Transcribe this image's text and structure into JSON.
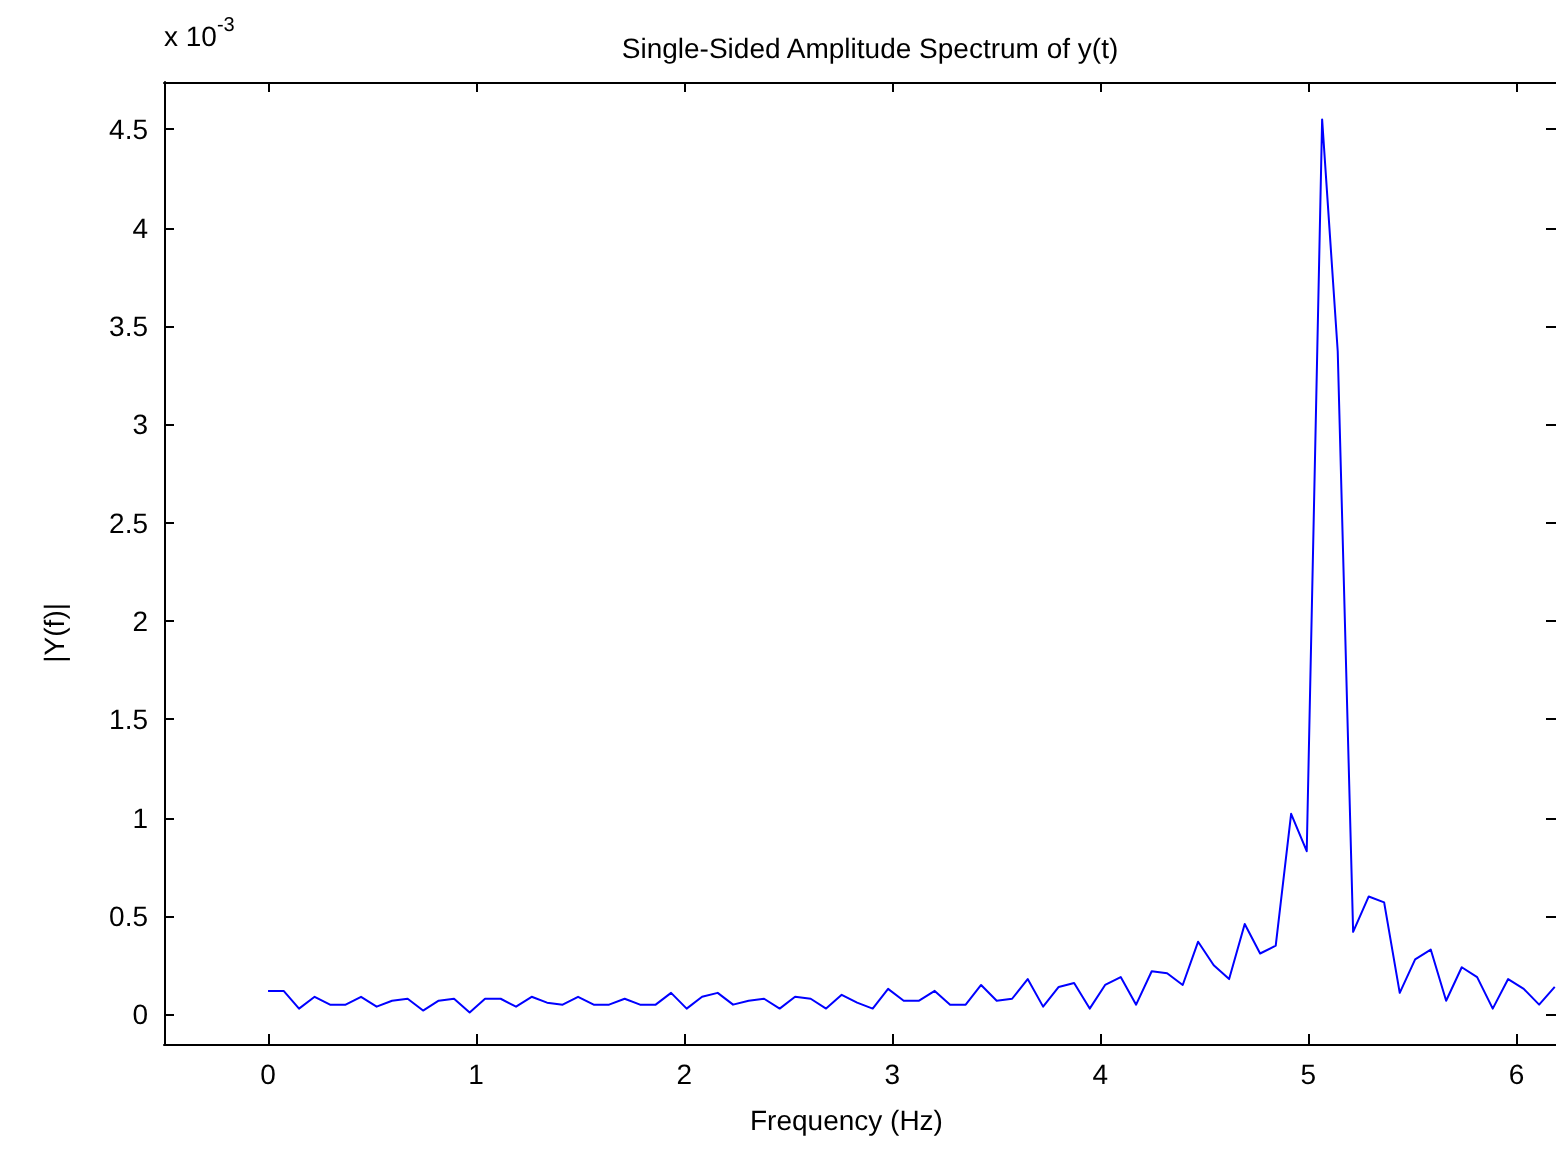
{
  "chart_data": {
    "type": "line",
    "title": "Single-Sided Amplitude Spectrum of y(t)",
    "xlabel": "Frequency (Hz)",
    "ylabel": "|Y(f)|",
    "annotations": [
      "x 10$^{-3}$"
    ],
    "x": [
      0,
      0.075,
      0.149,
      0.224,
      0.298,
      0.373,
      0.447,
      0.522,
      0.596,
      0.671,
      0.745,
      0.82,
      0.894,
      0.969,
      1.043,
      1.118,
      1.192,
      1.267,
      1.341,
      1.416,
      1.49,
      1.565,
      1.639,
      1.714,
      1.788,
      1.863,
      1.937,
      2.012,
      2.086,
      2.161,
      2.235,
      2.31,
      2.384,
      2.459,
      2.533,
      2.608,
      2.682,
      2.757,
      2.831,
      2.906,
      2.98,
      3.055,
      3.129,
      3.204,
      3.278,
      3.353,
      3.427,
      3.502,
      3.576,
      3.651,
      3.725,
      3.8,
      3.874,
      3.949,
      4.023,
      4.098,
      4.172,
      4.247,
      4.321,
      4.396,
      4.47,
      4.545,
      4.619,
      4.694,
      4.768,
      4.843,
      4.917,
      4.992,
      5.066,
      5.141,
      5.215,
      5.29,
      5.364,
      5.439,
      5.513,
      5.588,
      5.662,
      5.737,
      5.811,
      5.886,
      5.96,
      6.035,
      6.109,
      6.184
    ],
    "series": [
      {
        "color": "#0000ff",
        "values": [
          0.12,
          0.12,
          0.03,
          0.09,
          0.05,
          0.05,
          0.09,
          0.04,
          0.07,
          0.08,
          0.02,
          0.07,
          0.08,
          0.01,
          0.08,
          0.08,
          0.04,
          0.09,
          0.06,
          0.05,
          0.09,
          0.05,
          0.05,
          0.08,
          0.05,
          0.05,
          0.11,
          0.03,
          0.09,
          0.11,
          0.05,
          0.07,
          0.08,
          0.03,
          0.09,
          0.08,
          0.03,
          0.1,
          0.06,
          0.03,
          0.13,
          0.07,
          0.07,
          0.12,
          0.05,
          0.05,
          0.15,
          0.07,
          0.08,
          0.18,
          0.04,
          0.14,
          0.16,
          0.03,
          0.15,
          0.19,
          0.05,
          0.22,
          0.21,
          0.15,
          0.37,
          0.25,
          0.18,
          0.46,
          0.31,
          0.35,
          1.02,
          0.83,
          4.55,
          3.37,
          0.42,
          0.6,
          0.57,
          0.11,
          0.28,
          0.33,
          0.07,
          0.24,
          0.19,
          0.03,
          0.18,
          0.13,
          0.05,
          0.14
        ]
      }
    ],
    "xlim": [
      -0.5,
      6.19
    ],
    "ylim": [
      -0.15,
      4.74
    ],
    "xticks": [
      0,
      1,
      2,
      3,
      4,
      5,
      6
    ],
    "yticks": [
      0,
      0.5,
      1,
      1.5,
      2,
      2.5,
      3,
      3.5,
      4,
      4.5
    ],
    "tick_labels": "xy"
  }
}
